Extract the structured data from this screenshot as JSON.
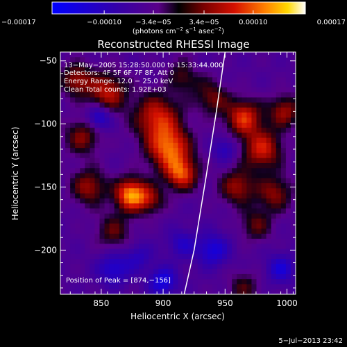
{
  "chart_data": {
    "type": "heatmap",
    "title": "Reconstructed RHESSI Image",
    "xlabel": "Heliocentric X (arcsec)",
    "ylabel": "Heliocentric Y (arcsec)",
    "xlim": [
      817,
      1007
    ],
    "ylim": [
      -235,
      -43
    ],
    "x_ticks": [
      850,
      900,
      950,
      1000
    ],
    "x_tick_labels": [
      "850",
      "900",
      "950",
      "1000"
    ],
    "y_ticks": [
      -50,
      -100,
      -150,
      -200
    ],
    "y_tick_labels": [
      "−50",
      "−100",
      "−150",
      "−200"
    ],
    "colorbar": {
      "range": [
        -0.00017,
        0.00017
      ],
      "tick_values": [
        -0.00017,
        -0.0001,
        -3.4e-05,
        3.4e-05,
        0.0001,
        0.00017
      ],
      "tick_labels": [
        "−0.00017",
        "−0.00010",
        "−3.4e−05",
        "3.4e−05",
        "0.00010",
        "0.00017"
      ],
      "units_prefix": "(photons cm",
      "units_exp1": "−2",
      "units_mid": " s",
      "units_exp2": "−1",
      "units_mid2": " asec",
      "units_exp3": "−2",
      "units_suffix": ")"
    },
    "annotations": [
      "13−May−2005 15:28:50.000 to 15:33:44.000",
      "Detectors: 4F 5F 6F 7F 8F, Att 0",
      "Energy Range: 12.0 − 25.0 keV",
      "Clean     Total counts: 1.92E+03"
    ],
    "peak_label": "Position of Peak = [874,−156]",
    "peak": [
      874,
      -156
    ],
    "limb_curve": [
      [
        917,
        -235
      ],
      [
        925,
        -200
      ],
      [
        935,
        -140
      ],
      [
        943,
        -90
      ],
      [
        950,
        -43
      ]
    ],
    "sources": [
      {
        "x": 874,
        "y": -156,
        "amp": 1.0,
        "s": 9
      },
      {
        "x": 905,
        "y": -120,
        "amp": 0.85,
        "s": 12
      },
      {
        "x": 915,
        "y": -140,
        "amp": 0.75,
        "s": 9
      },
      {
        "x": 895,
        "y": -95,
        "amp": 0.7,
        "s": 13
      },
      {
        "x": 855,
        "y": -75,
        "amp": 0.65,
        "s": 11
      },
      {
        "x": 830,
        "y": -65,
        "amp": 0.55,
        "s": 9
      },
      {
        "x": 835,
        "y": -110,
        "amp": 0.5,
        "s": 10
      },
      {
        "x": 840,
        "y": -150,
        "amp": 0.55,
        "s": 10
      },
      {
        "x": 860,
        "y": -185,
        "amp": 0.4,
        "s": 10
      },
      {
        "x": 890,
        "y": -160,
        "amp": 0.45,
        "s": 8
      },
      {
        "x": 920,
        "y": -60,
        "amp": 0.5,
        "s": 10
      },
      {
        "x": 940,
        "y": -80,
        "amp": 0.45,
        "s": 9
      },
      {
        "x": 965,
        "y": -95,
        "amp": 0.75,
        "s": 10
      },
      {
        "x": 980,
        "y": -120,
        "amp": 0.7,
        "s": 11
      },
      {
        "x": 998,
        "y": -90,
        "amp": 0.55,
        "s": 9
      },
      {
        "x": 960,
        "y": -150,
        "amp": 0.55,
        "s": 10
      },
      {
        "x": 990,
        "y": -155,
        "amp": 0.5,
        "s": 10
      },
      {
        "x": 975,
        "y": -180,
        "amp": 0.4,
        "s": 9
      },
      {
        "x": 965,
        "y": -230,
        "amp": 0.35,
        "s": 9
      },
      {
        "x": 848,
        "y": -95,
        "amp": -0.55,
        "s": 7
      },
      {
        "x": 925,
        "y": -55,
        "amp": -0.3,
        "s": 7
      },
      {
        "x": 860,
        "y": -215,
        "amp": -0.45,
        "s": 9
      },
      {
        "x": 900,
        "y": -225,
        "amp": -0.55,
        "s": 8
      },
      {
        "x": 940,
        "y": -200,
        "amp": -0.5,
        "s": 9
      },
      {
        "x": 995,
        "y": -215,
        "amp": -0.45,
        "s": 8
      },
      {
        "x": 950,
        "y": -120,
        "amp": -0.35,
        "s": 7
      },
      {
        "x": 915,
        "y": -195,
        "amp": -0.35,
        "s": 8
      },
      {
        "x": 880,
        "y": -205,
        "amp": -0.3,
        "s": 8
      }
    ]
  },
  "footer": {
    "timestamp": "5−Jul−2013 23:42"
  }
}
